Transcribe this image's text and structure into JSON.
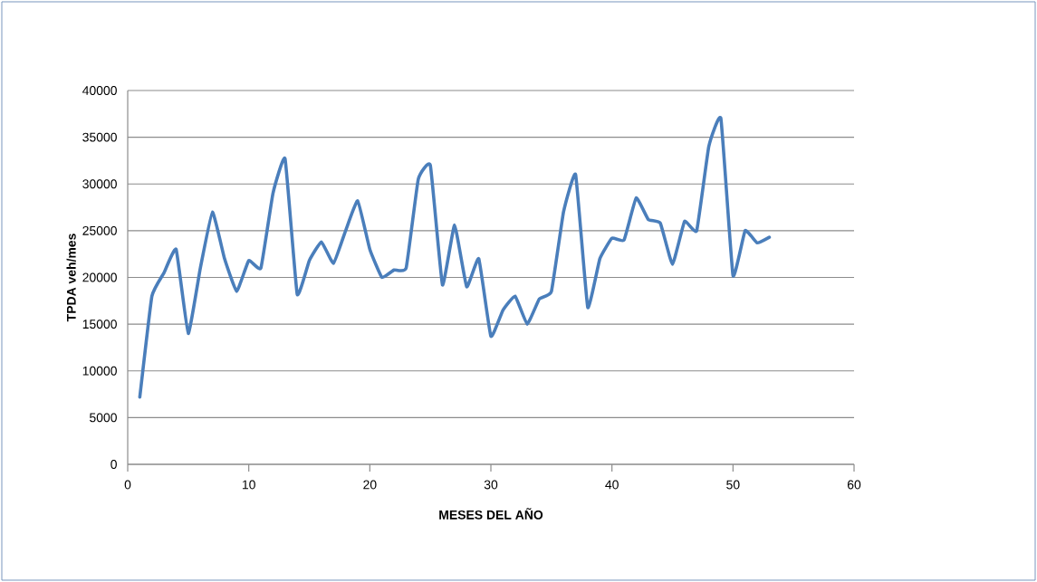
{
  "chart_data": {
    "type": "line",
    "xlabel": "MESES DEL AÑO",
    "ylabel": "TPDA veh/mes",
    "x": [
      1,
      2,
      3,
      4,
      5,
      6,
      7,
      8,
      9,
      10,
      11,
      12,
      13,
      14,
      15,
      16,
      17,
      18,
      19,
      20,
      21,
      22,
      23,
      24,
      25,
      26,
      27,
      28,
      29,
      30,
      31,
      32,
      33,
      34,
      35,
      36,
      37,
      38,
      39,
      40,
      41,
      42,
      43,
      44,
      45,
      46,
      47,
      48,
      49,
      50,
      51,
      52,
      53
    ],
    "series": [
      {
        "color": "#4a7ebb",
        "values": [
          7200,
          18000,
          20500,
          23000,
          14000,
          21000,
          27000,
          22000,
          18500,
          21800,
          21000,
          29000,
          32700,
          18200,
          21800,
          23800,
          21500,
          25000,
          28200,
          23000,
          20000,
          20800,
          21000,
          30500,
          32000,
          19200,
          25600,
          19000,
          22000,
          13700,
          16500,
          18000,
          15000,
          17700,
          18500,
          27000,
          31000,
          16800,
          22000,
          24200,
          24000,
          28500,
          26200,
          25800,
          21400,
          26000,
          25000,
          34000,
          37000,
          20200,
          25000,
          23700,
          24300
        ]
      }
    ],
    "xlim": [
      0,
      60
    ],
    "xticks": [
      0,
      10,
      20,
      30,
      40,
      50,
      60
    ],
    "ylim": [
      0,
      40000
    ],
    "yticks": [
      0,
      5000,
      10000,
      15000,
      20000,
      25000,
      30000,
      35000,
      40000
    ],
    "grid": "y",
    "marker": "none",
    "line_style": "solid"
  }
}
